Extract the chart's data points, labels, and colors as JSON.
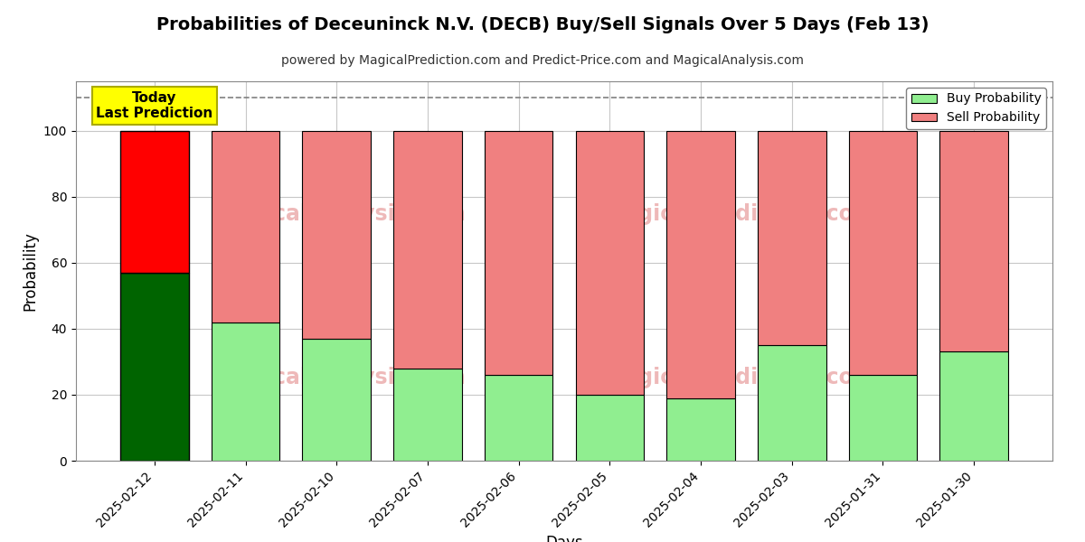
{
  "title": "Probabilities of Deceuninck N.V. (DECB) Buy/Sell Signals Over 5 Days (Feb 13)",
  "subtitle": "powered by MagicalPrediction.com and Predict-Price.com and MagicalAnalysis.com",
  "xlabel": "Days",
  "ylabel": "Probability",
  "categories": [
    "2025-02-12",
    "2025-02-11",
    "2025-02-10",
    "2025-02-07",
    "2025-02-06",
    "2025-02-05",
    "2025-02-04",
    "2025-02-03",
    "2025-01-31",
    "2025-01-30"
  ],
  "buy_values": [
    57,
    42,
    37,
    28,
    26,
    20,
    19,
    35,
    26,
    33
  ],
  "sell_values": [
    43,
    58,
    63,
    72,
    74,
    80,
    81,
    65,
    74,
    67
  ],
  "today_buy_color": "#006400",
  "today_sell_color": "#ff0000",
  "buy_color": "#90ee90",
  "sell_color": "#f08080",
  "bar_edge_color": "#000000",
  "today_label_bg": "#ffff00",
  "today_label_text": "Today\nLast Prediction",
  "dashed_line_y": 110,
  "ylim": [
    0,
    115
  ],
  "yticks": [
    0,
    20,
    40,
    60,
    80,
    100
  ],
  "legend_buy": "Buy Probability",
  "legend_sell": "Sell Probability",
  "grid_color": "#c8c8c8",
  "background_color": "#ffffff"
}
